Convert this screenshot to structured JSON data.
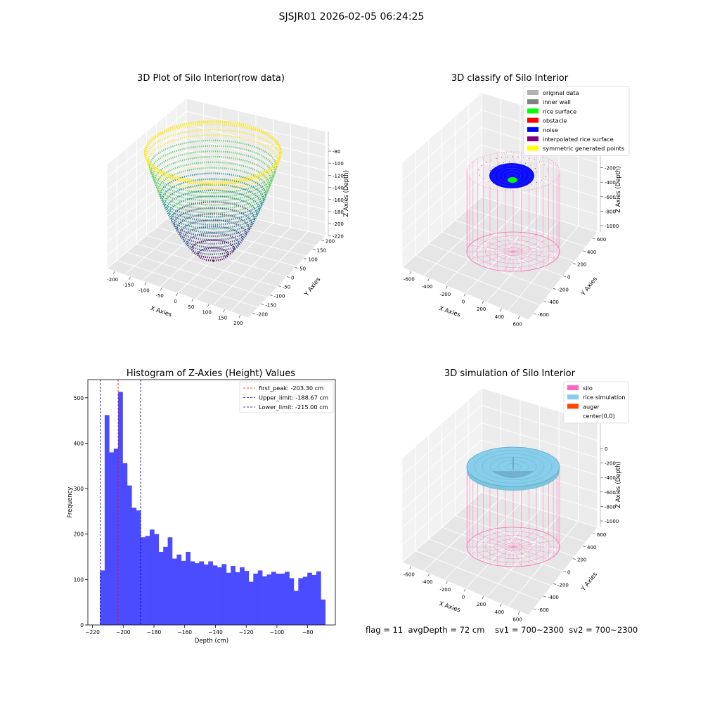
{
  "suptitle": "SJSJR01 2026-02-05 06:24:25",
  "footer": {
    "flag": "flag = 11",
    "avg_depth": "avgDepth = 72 cm",
    "sv1": "sv1 = 700~2300",
    "sv2": "sv2 = 700~2300"
  },
  "chart_data": [
    {
      "type": "scatter",
      "subtype": "3d-scatter",
      "title": "3D Plot of Silo Interior(row data)",
      "xlabel": "X Axies",
      "ylabel": "Y Axies",
      "zlabel": "Z Axies (Depth)",
      "xticks": [
        -200,
        -150,
        -100,
        -50,
        0,
        50,
        100,
        150,
        200
      ],
      "yticks": [
        -200,
        -150,
        -100,
        -50,
        0,
        50,
        100,
        150,
        200
      ],
      "zticks": [
        -80,
        -100,
        -120,
        -140,
        -160,
        -180,
        -200,
        -220
      ],
      "colormap": "viridis",
      "colors": [
        "#440154",
        "#3b528b",
        "#21918c",
        "#5ec962",
        "#fde725"
      ]
    },
    {
      "type": "scatter",
      "subtype": "3d-classify",
      "title": "3D classify of Silo Interior",
      "xlabel": "X Axies",
      "ylabel": "Y Axies",
      "zlabel": "Z Axies (Depth)",
      "xticks": [
        -600,
        -400,
        -200,
        0,
        200,
        400,
        600
      ],
      "yticks": [
        -600,
        -400,
        -200,
        0,
        200,
        400,
        600
      ],
      "zticks": [
        0,
        -200,
        -400,
        -600,
        -800,
        -1000
      ],
      "legend_position": "top-right",
      "legend": [
        {
          "label": "original data",
          "color": "#b3b3b3"
        },
        {
          "label": "inner wall",
          "color": "#808080"
        },
        {
          "label": "rice surface",
          "color": "#00ff00"
        },
        {
          "label": "obstacle",
          "color": "#ff0000"
        },
        {
          "label": "noise",
          "color": "#0000ff"
        },
        {
          "label": "interpolated rice surface",
          "color": "#800080"
        },
        {
          "label": "symmetric generated points",
          "color": "#ffff00"
        }
      ]
    },
    {
      "type": "bar",
      "subtype": "histogram",
      "title": "Histogram of Z-Axies (Height) Values",
      "xlabel": "Depth (cm)",
      "ylabel": "Frequency",
      "bar_color": "#4b4bff",
      "xlim": [
        -223,
        -62
      ],
      "ylim": [
        0,
        540
      ],
      "xticks": [
        -220,
        -200,
        -180,
        -160,
        -140,
        -120,
        -100,
        -80
      ],
      "yticks": [
        0,
        100,
        200,
        300,
        400,
        500
      ],
      "bin_start": -215.0,
      "bin_width": 2.93,
      "values": [
        120,
        462,
        380,
        388,
        513,
        356,
        307,
        258,
        252,
        193,
        196,
        210,
        200,
        161,
        172,
        193,
        146,
        155,
        141,
        161,
        140,
        136,
        140,
        133,
        140,
        131,
        127,
        134,
        115,
        130,
        116,
        127,
        119,
        95,
        113,
        120,
        107,
        111,
        117,
        113,
        113,
        117,
        103,
        75,
        103,
        106,
        115,
        110,
        118,
        56
      ],
      "legend_position": "top-right",
      "lines": [
        {
          "label": "first_peak: -203.30 cm",
          "x": -203.3,
          "color": "#ff0000"
        },
        {
          "label": "Upper_limit: -188.67 cm",
          "x": -188.67,
          "color": "#0000aa"
        },
        {
          "label": "Lower_limit: -215.00 cm",
          "x": -215.0,
          "color": "#0000aa"
        }
      ]
    },
    {
      "type": "scatter",
      "subtype": "3d-simulation",
      "title": "3D simulation of Silo Interior",
      "xlabel": "X Axies",
      "ylabel": "Y Axies",
      "zlabel": "Z Axies (Depth)",
      "xticks": [
        -600,
        -400,
        -200,
        0,
        200,
        400,
        600
      ],
      "yticks": [
        -600,
        -400,
        -200,
        0,
        200,
        400,
        600
      ],
      "zticks": [
        0,
        -200,
        -400,
        -600,
        -800,
        -1000
      ],
      "legend_position": "top-right",
      "legend": [
        {
          "label": "silo",
          "color": "#ff69b4"
        },
        {
          "label": "rice simulation",
          "color": "#87ceeb"
        },
        {
          "label": "auger",
          "color": "#ff4500"
        },
        {
          "label": "center(0,0)",
          "color": ""
        }
      ]
    }
  ]
}
